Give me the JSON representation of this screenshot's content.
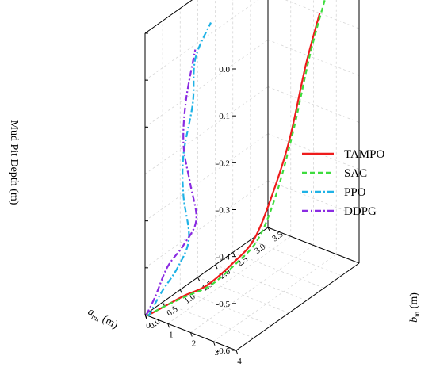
{
  "chart_data": {
    "type": "line",
    "projection": "3d",
    "title": "",
    "axes": {
      "x": {
        "label_main": "a",
        "label_sub": "mr",
        "label_unit": " (m)",
        "range": [
          0,
          4
        ],
        "ticks": [
          "0",
          "1",
          "2",
          "3",
          "4"
        ]
      },
      "y": {
        "label_main": "b",
        "label_sub": "m",
        "label_unit": " (m)",
        "range": [
          0,
          3.5
        ],
        "ticks": [
          "0.0",
          "0.5",
          "1.0",
          "1.5",
          "2.0",
          "2.5",
          "3.0",
          "3.5"
        ]
      },
      "z": {
        "label": "Mud Pit Depth (m)",
        "range": [
          -0.6,
          0
        ],
        "ticks": [
          "0.0",
          "-0.1",
          "-0.2",
          "-0.3",
          "-0.4",
          "-0.5",
          "-0.6"
        ]
      }
    },
    "grid": true,
    "legend_position": "right",
    "series": [
      {
        "name": "TAMPO",
        "color": "#ee1c1c",
        "dash": "solid",
        "x": [
          0.1,
          0.6,
          1.1,
          1.7,
          2.3,
          2.7,
          2.95,
          3.1,
          3.2,
          3.2
        ],
        "y": [
          0.0,
          0.2,
          0.4,
          0.65,
          1.0,
          1.35,
          1.7,
          2.1,
          2.5,
          2.9
        ],
        "z": [
          -0.6,
          -0.58,
          -0.56,
          -0.54,
          -0.5,
          -0.46,
          -0.38,
          -0.28,
          -0.14,
          -0.05
        ]
      },
      {
        "name": "SAC",
        "color": "#3ddc3d",
        "dash": "dashed",
        "x": [
          0.1,
          0.6,
          1.2,
          1.8,
          2.4,
          2.8,
          3.05,
          3.2,
          3.3,
          3.35
        ],
        "y": [
          0.0,
          0.2,
          0.45,
          0.7,
          1.05,
          1.4,
          1.75,
          2.15,
          2.55,
          2.95
        ],
        "z": [
          -0.6,
          -0.58,
          -0.56,
          -0.54,
          -0.5,
          -0.46,
          -0.38,
          -0.26,
          -0.12,
          -0.02
        ]
      },
      {
        "name": "PPO",
        "color": "#1fb2e6",
        "dash": "dashdot",
        "x": [
          0.15,
          0.5,
          0.9,
          1.0,
          0.6,
          0.3,
          0.4,
          0.2,
          0.5
        ],
        "y": [
          0.0,
          0.15,
          0.35,
          0.6,
          0.7,
          0.9,
          1.1,
          1.3,
          1.55
        ],
        "z": [
          -0.6,
          -0.55,
          -0.5,
          -0.45,
          -0.37,
          -0.3,
          -0.2,
          -0.12,
          -0.05
        ]
      },
      {
        "name": "DDPG",
        "color": "#8a2be2",
        "dash": "dashdot",
        "x": [
          0.05,
          0.3,
          0.6,
          1.1,
          1.4,
          0.9,
          0.3,
          0.1,
          0.2
        ],
        "y": [
          0.0,
          0.1,
          0.25,
          0.4,
          0.55,
          0.7,
          0.9,
          1.1,
          1.3
        ],
        "z": [
          -0.6,
          -0.56,
          -0.5,
          -0.45,
          -0.4,
          -0.34,
          -0.28,
          -0.2,
          -0.1
        ]
      }
    ]
  }
}
